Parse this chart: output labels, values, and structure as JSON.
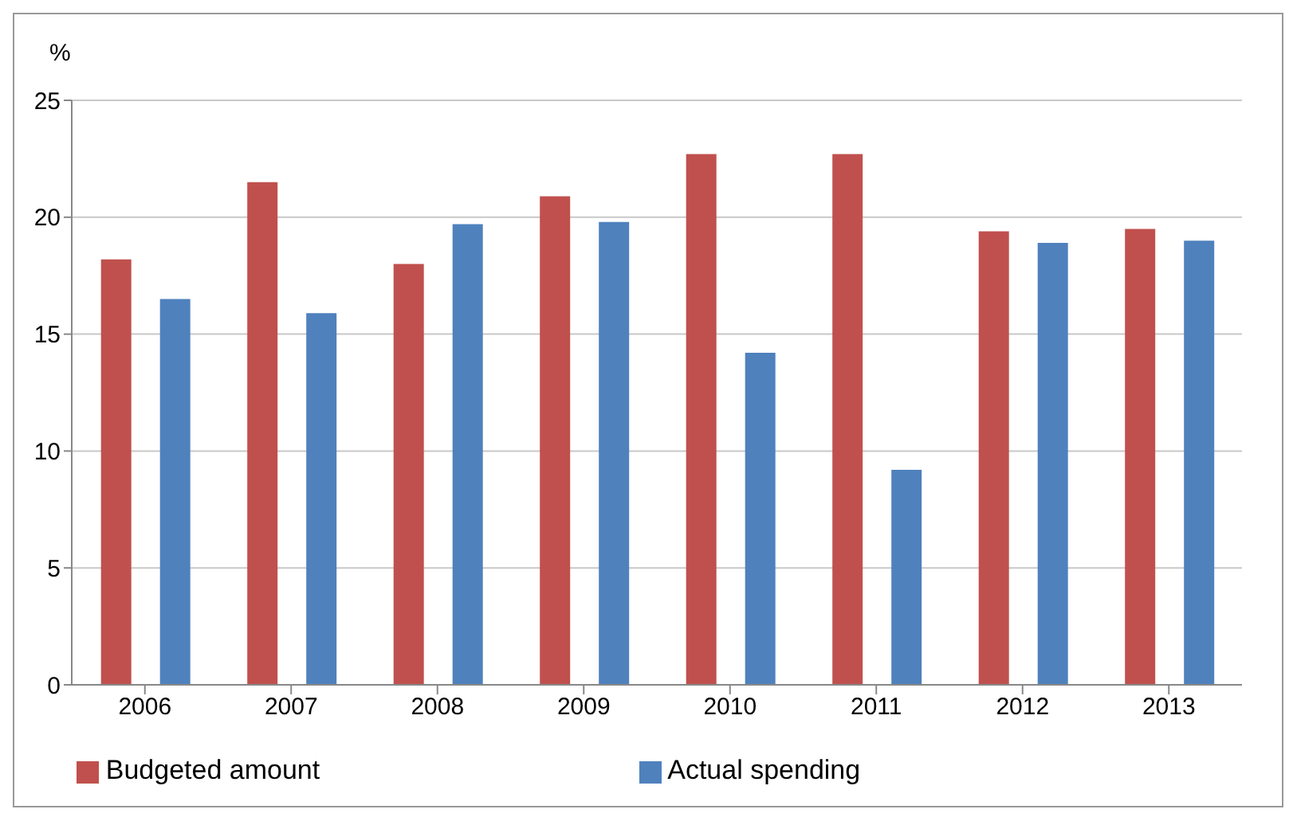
{
  "chart_data": {
    "type": "bar",
    "ylabel": "%",
    "categories": [
      "2006",
      "2007",
      "2008",
      "2009",
      "2010",
      "2011",
      "2012",
      "2013"
    ],
    "series": [
      {
        "name": "Budgeted amount",
        "color": "#c0504d",
        "values": [
          18.2,
          21.5,
          18.0,
          20.9,
          22.7,
          22.7,
          19.4,
          19.5
        ]
      },
      {
        "name": "Actual spending",
        "color": "#4f81bd",
        "values": [
          16.5,
          15.9,
          19.7,
          19.8,
          14.2,
          9.2,
          18.9,
          19.0
        ]
      }
    ],
    "ylim": [
      0,
      25
    ],
    "yticks": [
      0,
      5,
      10,
      15,
      20,
      25
    ],
    "grid": "y",
    "legend": "bottom"
  }
}
